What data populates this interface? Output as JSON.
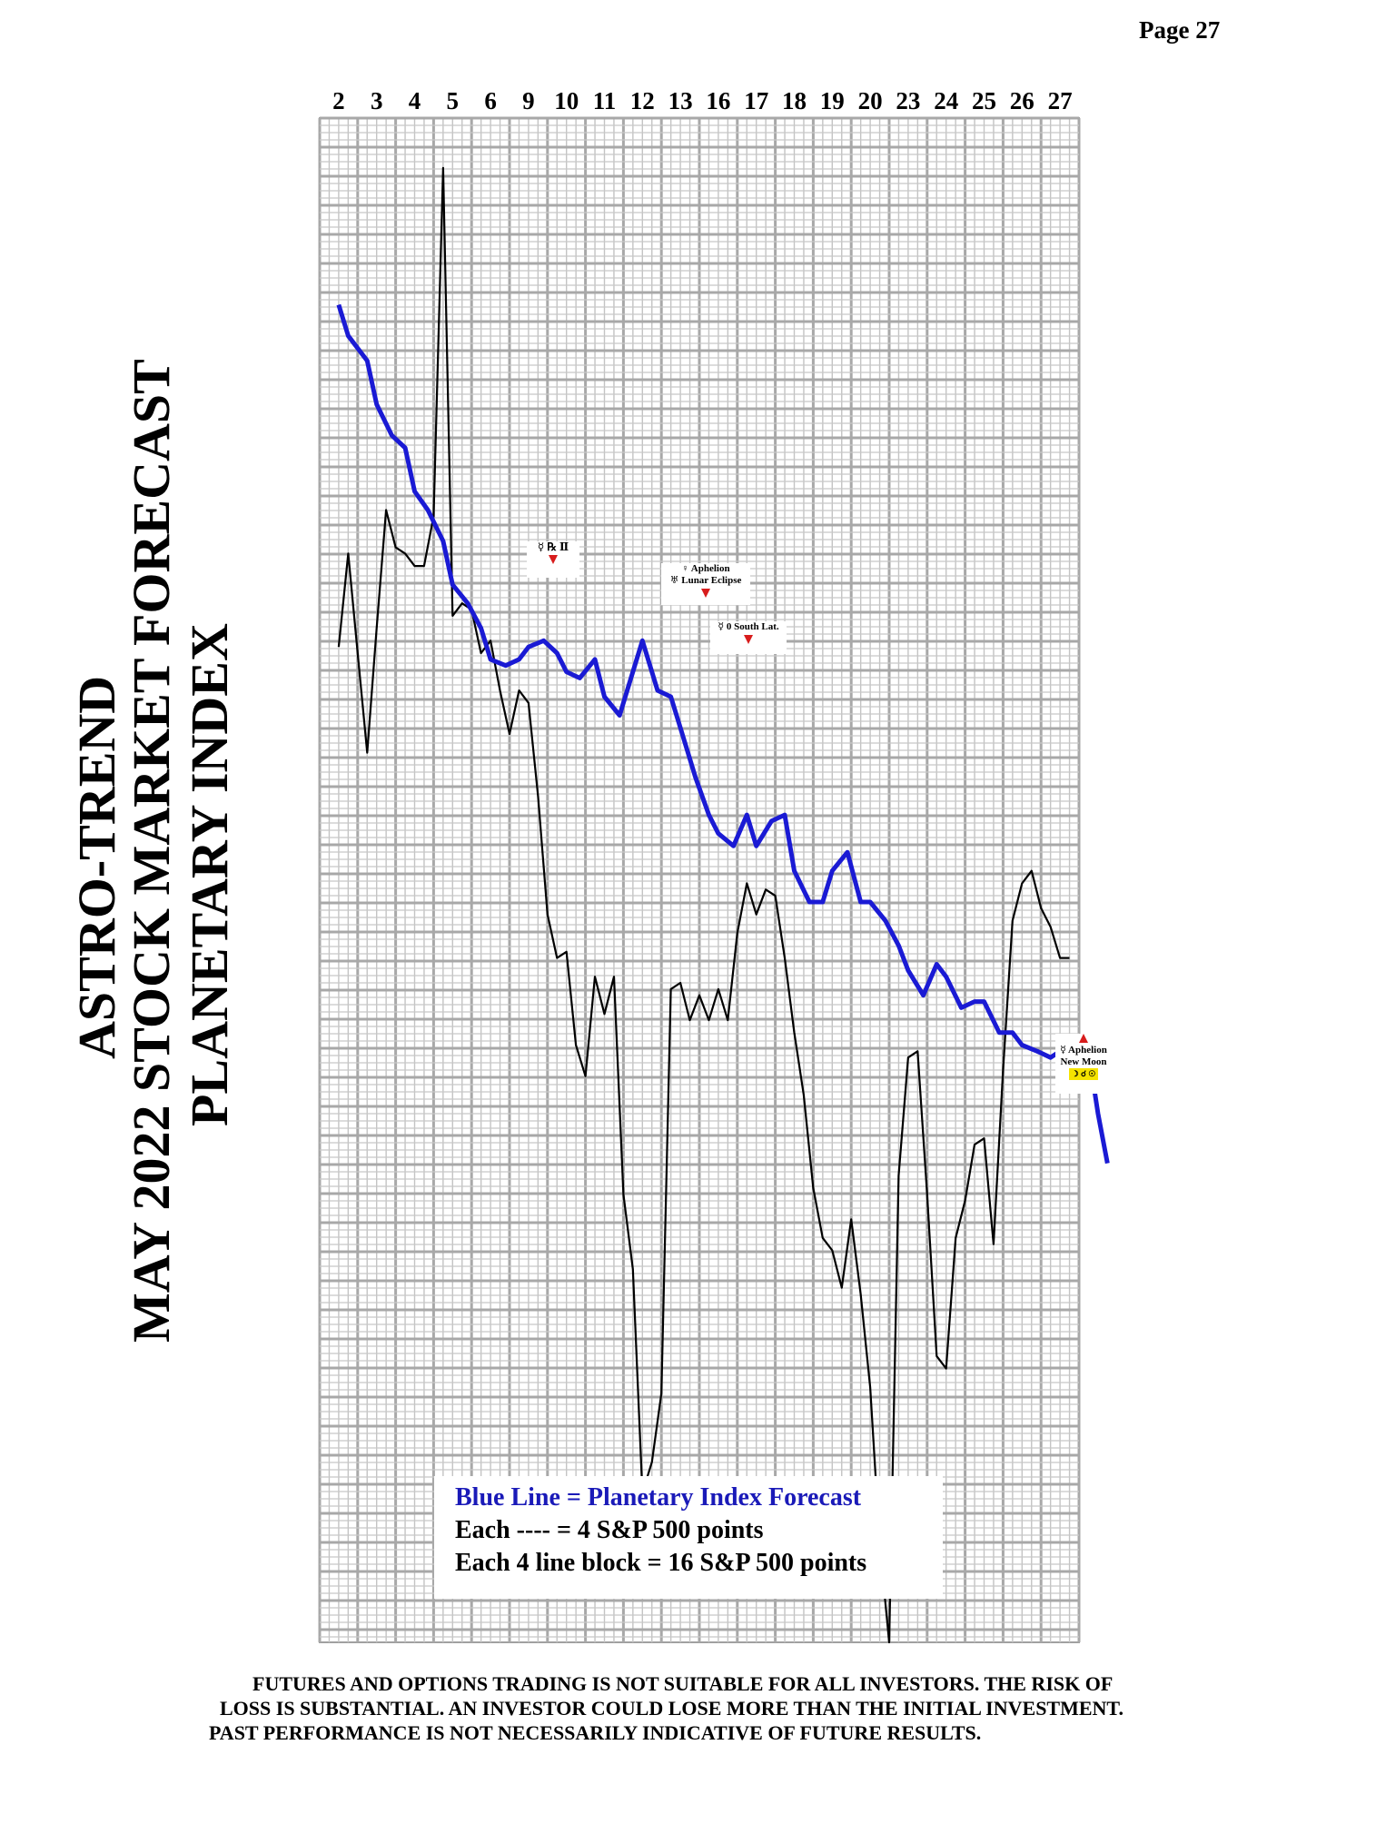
{
  "page": {
    "number": "Page  27"
  },
  "titles": [
    "ASTRO-TREND",
    "MAY 2022  STOCK MARKET FORECAST",
    "PLANETARY INDEX"
  ],
  "legend": {
    "line1": "Blue Line = Planetary Index Forecast",
    "line2": "Each ---- =   4 S&P 500 points",
    "line3": "Each 4 line block =  16  S&P 500 points"
  },
  "annotations": {
    "a1": "☿ ℞ Ⅱ",
    "a2_line1": "♀ Aphelion",
    "a2_line2": "♅ Lunar Eclipse",
    "a3": "☿ 0 South Lat.",
    "a4_line1": "☿ Aphelion",
    "a4_line2": "New Moon",
    "a4_line3": "☽ ☌ ☉"
  },
  "disclaimer": {
    "line1": "FUTURES AND OPTIONS TRADING IS NOT SUITABLE FOR ALL INVESTORS.  THE RISK OF",
    "line2": "LOSS IS SUBSTANTIAL.  AN INVESTOR COULD LOSE MORE THAN THE INITIAL INVESTMENT.",
    "line3": "PAST PERFORMANCE IS NOT NECESSARILY INDICATIVE OF FUTURE RESULTS."
  },
  "colors": {
    "forecast": "#1a1ad4",
    "price": "#000000",
    "grid": "#b4b4b4",
    "arrow": "#d81c1c"
  },
  "chart_data": {
    "type": "line",
    "x_tick_labels": [
      "2",
      "3",
      "4",
      "5",
      "6",
      "9",
      "10",
      "11",
      "12",
      "13",
      "16",
      "17",
      "18",
      "19",
      "20",
      "23",
      "24",
      "25",
      "26",
      "27"
    ],
    "series": [
      {
        "name": "Planetary Index Forecast",
        "color": "#1a1ad4",
        "x": [
          0,
          0.25,
          0.75,
          1,
          1.4,
          1.75,
          2,
          2.35,
          2.75,
          3,
          3.4,
          3.75,
          4,
          4.4,
          4.75,
          5,
          5.4,
          5.75,
          6,
          6.35,
          6.75,
          7,
          7.4,
          7.75,
          8,
          8.4,
          8.75,
          9,
          9.4,
          9.75,
          10,
          10.4,
          10.75,
          11,
          11.4,
          11.75,
          12,
          12.4,
          12.75,
          13,
          13.4,
          13.75,
          14,
          14.4,
          14.75,
          15,
          15.4,
          15.75,
          16,
          16.4,
          16.75,
          17,
          17.4,
          17.75,
          18,
          18.4,
          18.75,
          19,
          19.4,
          19.75,
          20,
          20.25
        ],
        "y": [
          100,
          95,
          91,
          84,
          79,
          77,
          70,
          67,
          62,
          55,
          52,
          48,
          43,
          42,
          43,
          45,
          46,
          44,
          41,
          40,
          43,
          37,
          34,
          41,
          46,
          38,
          37,
          32,
          24,
          18,
          15,
          13,
          18,
          13,
          17,
          18,
          9,
          4,
          4,
          9,
          12,
          4,
          4,
          1,
          -3,
          -7,
          -11,
          -6,
          -8,
          -13,
          -12,
          -12,
          -17,
          -17,
          -19,
          -20,
          -21,
          -20,
          -20,
          -20,
          -30,
          -38
        ]
      },
      {
        "name": "S&P 500",
        "color": "#000000",
        "x": [
          0,
          0.25,
          0.5,
          0.75,
          1,
          1.25,
          1.5,
          1.75,
          2,
          2.25,
          2.5,
          2.75,
          3,
          3.25,
          3.5,
          3.75,
          4,
          4.25,
          4.5,
          4.75,
          5,
          5.25,
          5.5,
          5.75,
          6,
          6.25,
          6.5,
          6.75,
          7,
          7.25,
          7.5,
          7.75,
          8,
          8.25,
          8.5,
          8.75,
          9,
          9.25,
          9.5,
          9.75,
          10,
          10.25,
          10.5,
          10.75,
          11,
          11.25,
          11.5,
          11.75,
          12,
          12.25,
          12.5,
          12.75,
          13,
          13.25,
          13.5,
          13.75,
          14,
          14.25,
          14.5,
          14.75,
          15,
          15.25,
          15.5,
          15.75,
          16,
          16.25,
          16.5,
          16.75,
          17,
          17.25,
          17.5,
          17.75,
          18,
          18.25,
          18.5,
          18.75,
          19,
          19.25
        ],
        "y": [
          45,
          60,
          44,
          28,
          48,
          67,
          61,
          60,
          58,
          58,
          66,
          122,
          50,
          52,
          51,
          44,
          46,
          38,
          31,
          38,
          36,
          21,
          2,
          -5,
          -4,
          -19,
          -24,
          -8,
          -14,
          -8,
          -43,
          -55,
          -91,
          -86,
          -75,
          -10,
          -9,
          -15,
          -11,
          -15,
          -10,
          -15,
          -1,
          7,
          2,
          6,
          5,
          -5,
          -17,
          -27,
          -42,
          -50,
          -52,
          -58,
          -47,
          -59,
          -74,
          -99,
          -115,
          -40,
          -21,
          -20,
          -43,
          -69,
          -71,
          -50,
          -44,
          -35,
          -34,
          -51,
          -23,
          1,
          7,
          9,
          3,
          0,
          -5,
          -5
        ]
      }
    ],
    "ylim": [
      -115,
      130
    ]
  }
}
